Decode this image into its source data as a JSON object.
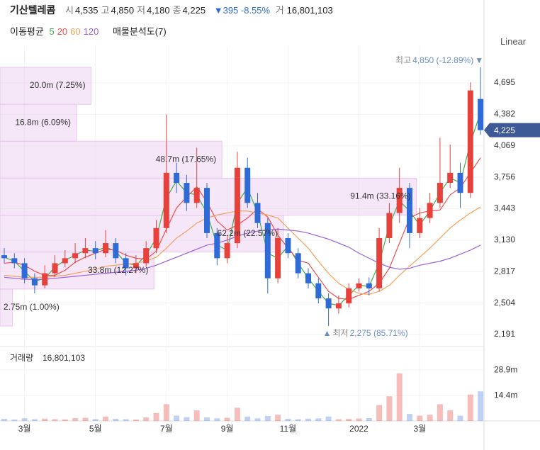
{
  "header": {
    "name": "기산텔레콤",
    "fields": [
      {
        "label": "시",
        "value": "4,535"
      },
      {
        "label": "고",
        "value": "4,850"
      },
      {
        "label": "저",
        "value": "4,180"
      },
      {
        "label": "종",
        "value": "4,225"
      }
    ],
    "change": "▼395 -8.55%",
    "volume_field": {
      "label": "거",
      "value": "16,801,103"
    },
    "ma_label": "이동평균",
    "indicator": "매물분석도(7)"
  },
  "scale_button": "Linear",
  "chart_data": {
    "type": "candlestick",
    "categories": [
      null,
      null,
      "3월",
      null,
      null,
      null,
      null,
      null,
      null,
      "5월",
      null,
      null,
      null,
      null,
      null,
      null,
      "7월",
      null,
      null,
      null,
      null,
      null,
      "9월",
      null,
      null,
      null,
      null,
      null,
      "11월",
      null,
      null,
      null,
      null,
      null,
      null,
      "2022",
      null,
      null,
      null,
      null,
      null,
      "3월",
      null,
      null,
      null,
      null,
      null,
      null
    ],
    "open": [
      2980,
      2950,
      2900,
      2750,
      2680,
      2800,
      2900,
      2950,
      3000,
      3050,
      3000,
      3100,
      2950,
      2850,
      2900,
      3050,
      3250,
      3800,
      3700,
      3500,
      3650,
      3200,
      2950,
      3100,
      3850,
      3500,
      3300,
      2750,
      3150,
      3000,
      2800,
      2700,
      2550,
      2450,
      2500,
      2650,
      2700,
      2650,
      3150,
      3400,
      3650,
      3200,
      3350,
      3500,
      3700,
      3800,
      3600,
      4535
    ],
    "high": [
      3050,
      3000,
      2950,
      2800,
      2880,
      2980,
      3030,
      3100,
      3150,
      3120,
      3230,
      3150,
      3000,
      2980,
      3120,
      3330,
      4380,
      3900,
      3780,
      4050,
      3700,
      3250,
      3180,
      4010,
      3950,
      3600,
      3350,
      3250,
      3200,
      3050,
      2850,
      2750,
      2600,
      2580,
      2700,
      2750,
      2760,
      3250,
      3500,
      3850,
      3700,
      3450,
      3600,
      4150,
      4080,
      3900,
      4700,
      4850
    ],
    "low": [
      2900,
      2850,
      2700,
      2600,
      2650,
      2760,
      2860,
      2900,
      2950,
      2940,
      2960,
      2900,
      2780,
      2800,
      2870,
      3000,
      3200,
      3600,
      3420,
      3450,
      3150,
      2880,
      2900,
      3050,
      3450,
      3250,
      2600,
      2700,
      2950,
      2750,
      2650,
      2500,
      2275,
      2400,
      2460,
      2620,
      2580,
      2620,
      3100,
      3300,
      3050,
      3150,
      3300,
      3450,
      3650,
      3450,
      3550,
      4180
    ],
    "close": [
      2950,
      2900,
      2750,
      2680,
      2800,
      2900,
      2950,
      3000,
      3050,
      3000,
      3100,
      2950,
      2850,
      2900,
      3050,
      3250,
      3800,
      3700,
      3500,
      3650,
      3200,
      2950,
      3100,
      3850,
      3500,
      3300,
      2750,
      3150,
      3000,
      2800,
      2700,
      2550,
      2450,
      2500,
      2650,
      2700,
      2650,
      3150,
      3400,
      3650,
      3200,
      3350,
      3500,
      3700,
      3800,
      3600,
      4620,
      4225
    ],
    "up_color": "#e8413b",
    "down_color": "#2f6bd6",
    "ylim": [
      2099,
      4991
    ],
    "yticks": [
      {
        "value": 4695,
        "label": "4,695"
      },
      {
        "value": 4382,
        "label": "4,382"
      },
      {
        "value": 4069,
        "label": "4,069"
      },
      {
        "value": 3756,
        "label": "3,756"
      },
      {
        "value": 3443,
        "label": "3,443"
      },
      {
        "value": 3130,
        "label": "3,130"
      },
      {
        "value": 2817,
        "label": "2,817"
      },
      {
        "value": 2504,
        "label": "2,504"
      },
      {
        "value": 2191,
        "label": "2,191"
      }
    ],
    "grid": true,
    "last_price": {
      "value": 4225,
      "label": "4,225"
    },
    "ma": [
      {
        "name": "5",
        "color": "#3fae49",
        "values": [
          2960,
          2920,
          2820,
          2720,
          2750,
          2860,
          2930,
          2980,
          3030,
          3020,
          3060,
          3020,
          2900,
          2880,
          2980,
          3150,
          3550,
          3720,
          3600,
          3580,
          3400,
          3080,
          3030,
          3500,
          3650,
          3400,
          3000,
          2950,
          3070,
          2900,
          2750,
          2620,
          2500,
          2480,
          2580,
          2680,
          2670,
          2900,
          3280,
          3520,
          3420,
          3280,
          3420,
          3600,
          3750,
          3700,
          4100,
          4400
        ]
      },
      {
        "name": "20",
        "color": "#ef4f4a",
        "values": [
          2900,
          2910,
          2880,
          2820,
          2780,
          2780,
          2830,
          2910,
          2960,
          3000,
          3040,
          3030,
          2980,
          2950,
          2940,
          3020,
          3240,
          3450,
          3560,
          3660,
          3510,
          3320,
          3230,
          3280,
          3350,
          3440,
          3360,
          3180,
          3050,
          2930,
          2900,
          2760,
          2620,
          2550,
          2540,
          2580,
          2620,
          2700,
          2850,
          3100,
          3350,
          3400,
          3420,
          3430,
          3580,
          3650,
          3800,
          3950
        ]
      },
      {
        "name": "60",
        "color": "#f2a25a",
        "values": [
          2780,
          2770,
          2760,
          2760,
          2760,
          2770,
          2780,
          2800,
          2820,
          2840,
          2870,
          2880,
          2890,
          2900,
          2920,
          2960,
          3050,
          3150,
          3220,
          3300,
          3350,
          3380,
          3400,
          3420,
          3420,
          3400,
          3380,
          3350,
          3250,
          3150,
          3050,
          2920,
          2800,
          2700,
          2640,
          2600,
          2590,
          2620,
          2680,
          2780,
          2870,
          2960,
          3050,
          3150,
          3250,
          3330,
          3400,
          3460
        ]
      },
      {
        "name": "120",
        "color": "#9a5fd8",
        "values": [
          2760,
          2750,
          2740,
          2740,
          2740,
          2750,
          2760,
          2770,
          2780,
          2790,
          2800,
          2810,
          2820,
          2830,
          2850,
          2880,
          2920,
          2960,
          3000,
          3040,
          3080,
          3100,
          3130,
          3170,
          3200,
          3220,
          3230,
          3240,
          3230,
          3220,
          3200,
          3170,
          3140,
          3100,
          3060,
          3000,
          2950,
          2900,
          2860,
          2840,
          2850,
          2880,
          2900,
          2920,
          2950,
          2990,
          3030,
          3080
        ]
      }
    ],
    "profile": {
      "volumes": [
        2.75,
        33.8,
        62.2,
        91.4,
        48.7,
        16.8,
        20.0
      ],
      "value_labels": [
        "2.75m (1.00%)",
        "33.8m (12.27%)",
        "62.2m (22.57%)",
        "91.4m (33.16%)",
        "48.7m (17.65%)",
        "16.8m (6.09%)",
        "20.0m (7.25%)"
      ]
    },
    "high_note": {
      "prefix": "최고",
      "text": "4,850 (-12.89%)",
      "arrow": "▼"
    },
    "low_note": {
      "arrow": "▲",
      "prefix": "최저",
      "text": "2,275 (85.71%)"
    },
    "volume": {
      "label": "거래량",
      "total": "16,801,103",
      "values": [
        1.2,
        0.8,
        1.5,
        1.0,
        1.3,
        1.0,
        0.9,
        1.6,
        1.8,
        1.1,
        2.5,
        1.2,
        1.0,
        0.8,
        2.0,
        4.5,
        9.5,
        3.0,
        2.2,
        6.0,
        2.0,
        1.5,
        1.8,
        7.5,
        2.5,
        1.5,
        2.8,
        3.5,
        1.2,
        1.0,
        1.3,
        1.5,
        2.5,
        1.0,
        1.2,
        1.4,
        1.6,
        9.0,
        14.0,
        27.0,
        4.0,
        3.0,
        3.5,
        9.5,
        6.0,
        3.0,
        15.0,
        16.8
      ],
      "ylim": [
        0,
        41
      ],
      "yticks": [
        {
          "value": 28.9,
          "label": "28.9m"
        },
        {
          "value": 14.4,
          "label": "14.4m"
        }
      ]
    }
  }
}
